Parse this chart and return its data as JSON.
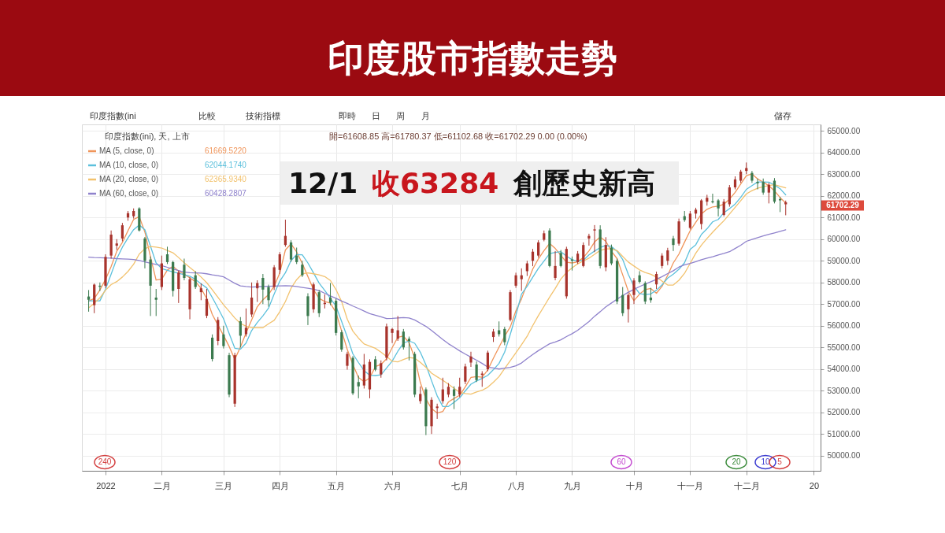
{
  "chart_data": {
    "type": "candlestick",
    "title": "印度股市指數走勢",
    "categories": [
      null,
      null,
      null,
      "2022",
      null,
      null,
      null,
      null,
      null,
      null,
      null,
      null,
      null,
      "二月",
      null,
      null,
      null,
      null,
      null,
      null,
      null,
      null,
      null,
      null,
      "三月",
      null,
      null,
      null,
      null,
      null,
      null,
      null,
      null,
      null,
      "四月",
      null,
      null,
      null,
      null,
      null,
      null,
      null,
      null,
      null,
      "五月",
      null,
      null,
      null,
      null,
      null,
      null,
      null,
      null,
      null,
      "六月",
      null,
      null,
      null,
      null,
      null,
      null,
      null,
      null,
      null,
      null,
      null,
      "七月",
      null,
      null,
      null,
      null,
      null,
      null,
      null,
      null,
      null,
      "八月",
      null,
      null,
      null,
      null,
      null,
      null,
      null,
      null,
      null,
      "九月",
      null,
      null,
      null,
      null,
      null,
      null,
      null,
      null,
      null,
      null,
      "十月",
      null,
      null,
      null,
      null,
      null,
      null,
      null,
      null,
      null,
      "十一月",
      null,
      null,
      null,
      null,
      null,
      null,
      null,
      null,
      null,
      "十二月",
      null,
      null,
      null,
      null,
      null,
      null,
      null,
      null,
      null,
      null,
      null,
      "20"
    ],
    "ohlc": [
      [
        57350,
        57650,
        56650,
        57200
      ],
      [
        56950,
        57950,
        56580,
        57900
      ],
      [
        57850,
        58000,
        57600,
        57800
      ],
      [
        57850,
        59300,
        57750,
        59180
      ],
      [
        59240,
        60400,
        59100,
        60210
      ],
      [
        59700,
        60000,
        59500,
        59800
      ],
      [
        60030,
        60750,
        59900,
        60640
      ],
      [
        61000,
        61300,
        60850,
        61200
      ],
      [
        61060,
        61420,
        60950,
        61300
      ],
      [
        61420,
        61470,
        60350,
        60400
      ],
      [
        60030,
        60100,
        58650,
        59000
      ],
      [
        59060,
        59200,
        56450,
        57850
      ],
      [
        57300,
        57700,
        56450,
        57200
      ],
      [
        57790,
        59240,
        57650,
        58880
      ],
      [
        59300,
        59650,
        58850,
        58940
      ],
      [
        58940,
        59000,
        57350,
        57610
      ],
      [
        57700,
        58550,
        57050,
        58460
      ],
      [
        58820,
        59100,
        58100,
        58210
      ],
      [
        56760,
        58250,
        56300,
        58150
      ],
      [
        58330,
        58520,
        57700,
        57790
      ],
      [
        57550,
        57950,
        57180,
        57730
      ],
      [
        56460,
        57700,
        56350,
        57240
      ],
      [
        55450,
        55600,
        54350,
        54460
      ],
      [
        55300,
        56400,
        55100,
        56270
      ],
      [
        55600,
        56000,
        54950,
        55060
      ],
      [
        54640,
        54750,
        52700,
        52820
      ],
      [
        52400,
        54750,
        52250,
        54640
      ],
      [
        56210,
        56400,
        55000,
        55540
      ],
      [
        55610,
        56800,
        55500,
        55910
      ],
      [
        56520,
        58000,
        56400,
        57300
      ],
      [
        57730,
        58100,
        57100,
        57970
      ],
      [
        58210,
        58390,
        57000,
        57670
      ],
      [
        57790,
        57900,
        56880,
        57180
      ],
      [
        57790,
        58800,
        57650,
        58700
      ],
      [
        58580,
        59400,
        58400,
        59300
      ],
      [
        59730,
        60900,
        59650,
        60150
      ],
      [
        59850,
        59950,
        58950,
        59060
      ],
      [
        59240,
        59610,
        58850,
        58940
      ],
      [
        58820,
        59000,
        58250,
        58330
      ],
      [
        57360,
        57500,
        56030,
        56450
      ],
      [
        56760,
        58000,
        56600,
        57910
      ],
      [
        57550,
        57650,
        56400,
        56580
      ],
      [
        57000,
        57450,
        56800,
        57060
      ],
      [
        57300,
        57970,
        56950,
        57060
      ],
      [
        57150,
        57250,
        55550,
        55670
      ],
      [
        55700,
        55800,
        54800,
        54900
      ],
      [
        54150,
        54800,
        53970,
        54700
      ],
      [
        54520,
        54600,
        52800,
        52880
      ],
      [
        53400,
        53700,
        52650,
        53200
      ],
      [
        53240,
        54700,
        53100,
        54210
      ],
      [
        53060,
        54450,
        52650,
        54330
      ],
      [
        54450,
        54600,
        53900,
        53970
      ],
      [
        53750,
        54400,
        53600,
        54270
      ],
      [
        54520,
        56100,
        54400,
        55970
      ],
      [
        55670,
        55900,
        55200,
        55850
      ],
      [
        55400,
        56450,
        55300,
        55790
      ],
      [
        55730,
        55850,
        54900,
        55000
      ],
      [
        55400,
        55500,
        54400,
        55300
      ],
      [
        54700,
        54800,
        52700,
        52820
      ],
      [
        52520,
        53200,
        52400,
        52850
      ],
      [
        53060,
        53150,
        50950,
        51360
      ],
      [
        51360,
        52700,
        51000,
        52580
      ],
      [
        52200,
        52400,
        51700,
        52270
      ],
      [
        52520,
        53600,
        52400,
        53060
      ],
      [
        52820,
        53350,
        52700,
        53180
      ],
      [
        53060,
        53200,
        52150,
        52760
      ],
      [
        52820,
        53600,
        52700,
        53180
      ],
      [
        53420,
        54250,
        53300,
        54120
      ],
      [
        54300,
        54800,
        54100,
        54580
      ],
      [
        54210,
        54350,
        53400,
        53490
      ],
      [
        53730,
        53900,
        53180,
        53790
      ],
      [
        53990,
        54850,
        53900,
        54760
      ],
      [
        55480,
        55850,
        55250,
        55730
      ],
      [
        55790,
        56200,
        55500,
        55610
      ],
      [
        55850,
        55950,
        55100,
        55240
      ],
      [
        56270,
        57650,
        56200,
        57550
      ],
      [
        57850,
        58450,
        57750,
        58330
      ],
      [
        58150,
        58650,
        57610,
        58330
      ],
      [
        58520,
        59000,
        58300,
        58880
      ],
      [
        59000,
        59550,
        58750,
        59420
      ],
      [
        59240,
        59950,
        59150,
        59850
      ],
      [
        59970,
        60400,
        59900,
        60270
      ],
      [
        60400,
        60500,
        58700,
        58760
      ],
      [
        58210,
        59450,
        58100,
        58760
      ],
      [
        59360,
        59500,
        58700,
        58760
      ],
      [
        57360,
        59650,
        57250,
        59550
      ],
      [
        59060,
        59200,
        58550,
        59000
      ],
      [
        58940,
        59450,
        58850,
        59330
      ],
      [
        58760,
        59850,
        58700,
        59730
      ],
      [
        60030,
        60250,
        59700,
        60150
      ],
      [
        60400,
        60650,
        59400,
        60450
      ],
      [
        60450,
        60640,
        58650,
        58760
      ],
      [
        58700,
        60090,
        58520,
        59730
      ],
      [
        59610,
        59750,
        58800,
        58880
      ],
      [
        59000,
        59100,
        57000,
        57120
      ],
      [
        57420,
        57790,
        56450,
        56580
      ],
      [
        56760,
        57500,
        56150,
        57420
      ],
      [
        57420,
        58200,
        57000,
        58090
      ],
      [
        58330,
        58520,
        57950,
        58030
      ],
      [
        57970,
        58050,
        57000,
        57120
      ],
      [
        57300,
        57750,
        57060,
        57180
      ],
      [
        57910,
        58500,
        57700,
        58390
      ],
      [
        58760,
        59350,
        58650,
        59240
      ],
      [
        59000,
        59600,
        58800,
        59480
      ],
      [
        60030,
        60150,
        59450,
        59730
      ],
      [
        59790,
        60950,
        59700,
        60820
      ],
      [
        61060,
        61300,
        60800,
        60880
      ],
      [
        60520,
        61300,
        60450,
        61180
      ],
      [
        61180,
        61450,
        60950,
        61360
      ],
      [
        60700,
        61850,
        60450,
        61790
      ],
      [
        61730,
        62050,
        61550,
        61910
      ],
      [
        61750,
        62100,
        61650,
        61700
      ],
      [
        61790,
        61850,
        61050,
        61420
      ],
      [
        61120,
        61850,
        61050,
        61730
      ],
      [
        61610,
        62500,
        61500,
        62390
      ],
      [
        62390,
        62900,
        62300,
        62760
      ],
      [
        62700,
        63200,
        62600,
        63120
      ],
      [
        63150,
        63540,
        63000,
        63284
      ],
      [
        63060,
        63150,
        62600,
        62700
      ],
      [
        62640,
        62800,
        62300,
        62580
      ],
      [
        62640,
        62800,
        62050,
        62150
      ],
      [
        62150,
        62600,
        61650,
        62510
      ],
      [
        62700,
        62820,
        61650,
        61730
      ],
      [
        61850,
        61950,
        61250,
        61790
      ],
      [
        61608.85,
        61780.37,
        61102.68,
        61702.29
      ],
      null,
      null,
      null,
      null,
      null
    ],
    "colors": [
      "#3b7a4e",
      "#a8332c",
      "#3b7a4e",
      "#a8332c",
      "#a8332c",
      "#a8332c",
      "#a8332c",
      "#a8332c",
      "#a8332c",
      "#3b7a4e",
      "#3b7a4e",
      "#3b7a4e",
      "#3b7a4e",
      "#a8332c",
      "#3b7a4e",
      "#3b7a4e",
      "#a8332c",
      "#3b7a4e",
      "#a8332c",
      "#3b7a4e",
      "#a8332c",
      "#a8332c",
      "#3b7a4e",
      "#a8332c",
      "#3b7a4e",
      "#3b7a4e",
      "#a8332c",
      "#3b7a4e",
      "#a8332c",
      "#a8332c",
      "#a8332c",
      "#3b7a4e",
      "#3b7a4e",
      "#a8332c",
      "#a8332c",
      "#a8332c",
      "#3b7a4e",
      "#3b7a4e",
      "#3b7a4e",
      "#3b7a4e",
      "#a8332c",
      "#3b7a4e",
      "#a8332c",
      "#3b7a4e",
      "#3b7a4e",
      "#3b7a4e",
      "#a8332c",
      "#3b7a4e",
      "#3b7a4e",
      "#a8332c",
      "#a8332c",
      "#3b7a4e",
      "#a8332c",
      "#a8332c",
      "#a8332c",
      "#a8332c",
      "#3b7a4e",
      "#3b7a4e",
      "#3b7a4e",
      "#a8332c",
      "#3b7a4e",
      "#a8332c",
      "#a8332c",
      "#a8332c",
      "#a8332c",
      "#3b7a4e",
      "#a8332c",
      "#a8332c",
      "#a8332c",
      "#3b7a4e",
      "#a8332c",
      "#a8332c",
      "#a8332c",
      "#3b7a4e",
      "#3b7a4e",
      "#a8332c",
      "#a8332c",
      "#a8332c",
      "#a8332c",
      "#a8332c",
      "#a8332c",
      "#a8332c",
      "#3b7a4e",
      "#a8332c",
      "#3b7a4e",
      "#a8332c",
      "#3b7a4e",
      "#a8332c",
      "#a8332c",
      "#a8332c",
      "#a8332c",
      "#3b7a4e",
      "#a8332c",
      "#3b7a4e",
      "#3b7a4e",
      "#3b7a4e",
      "#a8332c",
      "#a8332c",
      "#3b7a4e",
      "#3b7a4e",
      "#3b7a4e",
      "#a8332c",
      "#a8332c",
      "#a8332c",
      "#3b7a4e",
      "#a8332c",
      "#3b7a4e",
      "#a8332c",
      "#a8332c",
      "#a8332c",
      "#a8332c",
      "#3b7a4e",
      "#3b7a4e",
      "#a8332c",
      "#a8332c",
      "#a8332c",
      "#a8332c",
      "#a8332c",
      "#3b7a4e",
      "#3b7a4e",
      "#3b7a4e",
      "#a8332c",
      "#3b7a4e",
      "#3b7a4e",
      "#a8332c",
      null,
      null,
      null,
      null,
      null
    ],
    "series": [
      {
        "name": "MA (5, close, 0)",
        "type": "line",
        "color": "#f0955a",
        "values": [
          57140,
          57260,
          57650,
          58140,
          58740,
          59440,
          59850,
          60390,
          60910,
          61040,
          60330,
          59180,
          58110,
          58150,
          58570,
          58750,
          58520,
          58380,
          58210,
          58040,
          57720,
          57260,
          56520,
          56030,
          55550,
          55040,
          54450,
          55020,
          55660,
          56270,
          56880,
          57200,
          57440,
          57830,
          58440,
          59500,
          59780,
          59410,
          58880,
          58270,
          57670,
          57270,
          57120,
          57040,
          56610,
          55760,
          54910,
          54210,
          53610,
          53420,
          53590,
          54110,
          54210,
          54470,
          54990,
          55470,
          55520,
          55220,
          54520,
          53380,
          52620,
          52170,
          51970,
          52040,
          52480,
          52640,
          52790,
          53180,
          53610,
          53650,
          53620,
          53960,
          54500,
          55010,
          55520,
          55940,
          56690,
          57240,
          57950,
          58620,
          59090,
          59470,
          59800,
          59570,
          59250,
          58930,
          58900,
          58950,
          59150,
          59460,
          59870,
          60100,
          59900,
          59440,
          59100,
          58350,
          57590,
          57160,
          57460,
          57670,
          57720,
          57500,
          57820,
          58330,
          58900,
          59310,
          59860,
          60390,
          60780,
          61160,
          61380,
          61490,
          61520,
          61610,
          61850,
          62160,
          62550,
          62930,
          63010,
          62780,
          62630,
          62470,
          62230,
          61920,
          61669.522,
          null,
          null,
          null,
          null,
          null
        ]
      },
      {
        "name": "MA (10, close, 0)",
        "type": "line",
        "color": "#5cc0dc",
        "values": [
          57150,
          57150,
          57150,
          57690,
          58380,
          59090,
          59630,
          60060,
          60440,
          60650,
          60440,
          59670,
          58900,
          58640,
          58560,
          58490,
          58420,
          58360,
          58290,
          58140,
          57940,
          57750,
          57300,
          56820,
          56320,
          55640,
          54960,
          54920,
          55200,
          55780,
          56150,
          56460,
          56810,
          57460,
          58060,
          58450,
          59010,
          59290,
          59280,
          58900,
          58440,
          57970,
          57630,
          57270,
          56900,
          56200,
          55480,
          54700,
          54300,
          53930,
          53710,
          53700,
          53730,
          54050,
          54370,
          54820,
          55200,
          55300,
          55190,
          54780,
          54190,
          53460,
          52760,
          52270,
          52270,
          52460,
          52670,
          52990,
          53300,
          53450,
          53570,
          53710,
          53970,
          54260,
          54780,
          55600,
          56490,
          57460,
          57820,
          58240,
          58650,
          58990,
          59330,
          59390,
          59420,
          59220,
          59050,
          58980,
          59030,
          59270,
          59450,
          59610,
          59710,
          59660,
          59440,
          59060,
          58370,
          57820,
          57490,
          57440,
          57470,
          57640,
          57890,
          58200,
          58380,
          58610,
          58910,
          59530,
          59740,
          60220,
          60480,
          60800,
          60910,
          61220,
          61410,
          61620,
          61930,
          62300,
          62470,
          62640,
          62640,
          62630,
          62500,
          62330,
          62044.174,
          null,
          null,
          null,
          null,
          null
        ]
      },
      {
        "name": "MA (20, close, 0)",
        "type": "line",
        "color": "#f2c26e",
        "values": [
          56830,
          57040,
          57290,
          57640,
          57900,
          58040,
          58250,
          58510,
          58840,
          59310,
          59560,
          59660,
          59630,
          59590,
          59480,
          59370,
          59150,
          58910,
          58690,
          58480,
          58250,
          57990,
          57660,
          57310,
          56970,
          56670,
          56360,
          56110,
          55980,
          55910,
          55910,
          55910,
          56090,
          56250,
          56650,
          57120,
          57730,
          58130,
          58400,
          58440,
          58400,
          58350,
          58270,
          58090,
          57670,
          57120,
          56310,
          55750,
          55430,
          55160,
          55060,
          54960,
          54780,
          54580,
          54360,
          54330,
          54440,
          54530,
          54500,
          54310,
          54080,
          53810,
          53640,
          53480,
          53300,
          53110,
          52930,
          52870,
          52840,
          52940,
          53020,
          53160,
          53390,
          53650,
          54020,
          54390,
          54750,
          55120,
          55510,
          56010,
          56470,
          56890,
          57320,
          57720,
          58160,
          58460,
          58670,
          58860,
          58990,
          59120,
          59300,
          59480,
          59550,
          59550,
          59470,
          59200,
          58940,
          58760,
          58580,
          58460,
          58380,
          58250,
          58060,
          57880,
          57880,
          58100,
          58420,
          58880,
          59350,
          59720,
          60030,
          60320,
          60590,
          60850,
          61160,
          61470,
          61780,
          62090,
          62240,
          62350,
          62420,
          62480,
          62510,
          62440,
          62365.934,
          null,
          null,
          null,
          null,
          null
        ]
      },
      {
        "name": "MA (60, close, 0)",
        "type": "line",
        "color": "#8f82cc",
        "values": [
          59170,
          59150,
          59140,
          59130,
          59120,
          59100,
          59090,
          59080,
          59060,
          59010,
          58950,
          58890,
          58830,
          58780,
          58700,
          58620,
          58550,
          58480,
          58450,
          58440,
          58430,
          58400,
          58350,
          58310,
          58260,
          58110,
          57960,
          57840,
          57810,
          57790,
          57800,
          57810,
          57820,
          57830,
          57840,
          57850,
          57840,
          57810,
          57770,
          57730,
          57690,
          57620,
          57500,
          57380,
          57270,
          57140,
          57030,
          56910,
          56800,
          56680,
          56560,
          56490,
          56410,
          56330,
          56340,
          56360,
          56380,
          56360,
          56270,
          56120,
          55970,
          55780,
          55570,
          55360,
          55170,
          55010,
          54840,
          54690,
          54550,
          54410,
          54260,
          54090,
          54050,
          54000,
          54040,
          54080,
          54150,
          54280,
          54480,
          54670,
          54850,
          55010,
          55170,
          55250,
          55350,
          55500,
          55630,
          55790,
          55990,
          56190,
          56440,
          56650,
          56870,
          57050,
          57230,
          57390,
          57550,
          57680,
          57810,
          57920,
          58030,
          58140,
          58270,
          58410,
          58540,
          58710,
          58810,
          58880,
          58960,
          59050,
          59120,
          59190,
          59270,
          59340,
          59420,
          59570,
          59720,
          59900,
          59990,
          60070,
          60150,
          60220,
          60290,
          60360,
          60428.2807,
          null,
          null,
          null,
          null,
          null
        ]
      }
    ],
    "ylim": [
      49300,
      65300
    ],
    "yticks": [
      {
        "value": 50000,
        "label": "50000.00"
      },
      {
        "value": 51000,
        "label": "51000.00"
      },
      {
        "value": 52000,
        "label": "52000.00"
      },
      {
        "value": 53000,
        "label": "53000.00"
      },
      {
        "value": 54000,
        "label": "54000.00"
      },
      {
        "value": 55000,
        "label": "55000.00"
      },
      {
        "value": 56000,
        "label": "56000.00"
      },
      {
        "value": 57000,
        "label": "57000.00"
      },
      {
        "value": 58000,
        "label": "58000.00"
      },
      {
        "value": 59000,
        "label": "59000.00"
      },
      {
        "value": 60000,
        "label": "60000.00"
      },
      {
        "value": 61000,
        "label": "61000.00"
      },
      {
        "value": 62000,
        "label": "62000.00"
      },
      {
        "value": 63000,
        "label": "63000.00"
      },
      {
        "value": 64000,
        "label": "64000.00"
      },
      {
        "value": 65000,
        "label": "65000.00"
      }
    ],
    "grid": true,
    "legend": "top left",
    "annotations": [
      "印度指數(ini",
      "比較",
      "技術指標",
      "即時",
      "日",
      "周",
      "月",
      "儲存",
      "印度指數(ini), 天, 上市",
      "開=61608.85 高=61780.37 低=61102.68 收=61702.29 0.00 (0.00%)",
      "61669.5220",
      "62044.1740",
      "62365.9340",
      "60428.2807",
      "12/1",
      "收63284",
      "創歷史新高",
      "240",
      "120",
      "60",
      "20",
      "10",
      "5",
      "61702.29"
    ]
  }
}
